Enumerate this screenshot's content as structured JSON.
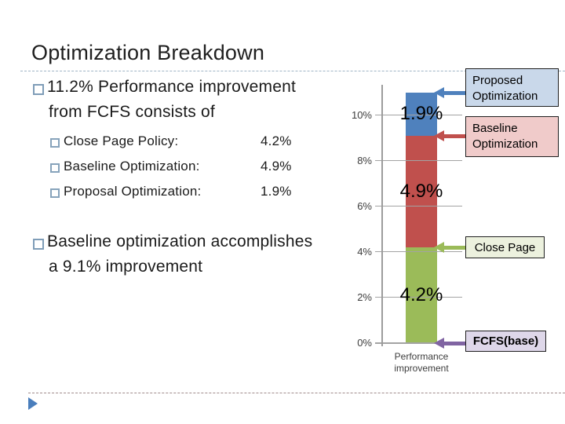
{
  "slide": {
    "title": "Optimization Breakdown",
    "bullet1_line1": "11.2% Performance improvement",
    "bullet1_line2": "from FCFS consists of",
    "sub_items": [
      {
        "label": "Close Page Policy:",
        "value": "4.2%"
      },
      {
        "label": "Baseline Optimization:",
        "value": "4.9%"
      },
      {
        "label": "Proposal Optimization:",
        "value": "1.9%"
      }
    ],
    "bullet2_line1": "Baseline optimization accomplishes",
    "bullet2_line2": "a 9.1% improvement"
  },
  "chart_data": {
    "type": "bar",
    "stacked": true,
    "categories": [
      "Performance improvement"
    ],
    "series": [
      {
        "name": "Close Page",
        "values": [
          4.2
        ],
        "label": "4.2%",
        "color": "#9bbb59"
      },
      {
        "name": "Baseline Optimization",
        "values": [
          4.9
        ],
        "label": "4.9%",
        "color": "#c0504d"
      },
      {
        "name": "Proposed Optimization",
        "values": [
          1.9
        ],
        "label": "1.9%",
        "color": "#4f81bd"
      }
    ],
    "xlabel": "Performance improvement",
    "ylabel": "",
    "ylim": [
      0,
      11.2
    ],
    "yticks": [
      {
        "label": "0%",
        "value": 0
      },
      {
        "label": "2%",
        "value": 2
      },
      {
        "label": "4%",
        "value": 4
      },
      {
        "label": "6%",
        "value": 6
      },
      {
        "label": "8%",
        "value": 8
      },
      {
        "label": "10%",
        "value": 10
      }
    ],
    "grid": true,
    "legend": false,
    "gridline_color": "#a3a3a3",
    "axis_color": "#9c9c9c"
  },
  "callouts": [
    {
      "label": "Proposed Optimization",
      "fill": "#c9d8ea",
      "arrow_color": "#4f81bd"
    },
    {
      "label": "Baseline Optimization",
      "fill": "#f0cbca",
      "arrow_color": "#c0504d"
    },
    {
      "label": "Close Page",
      "fill": "#ecf1de",
      "arrow_color": "#9bbb59"
    },
    {
      "label": "FCFS(base)",
      "fill": "#ded7e9",
      "arrow_color": "#8064a2"
    }
  ]
}
